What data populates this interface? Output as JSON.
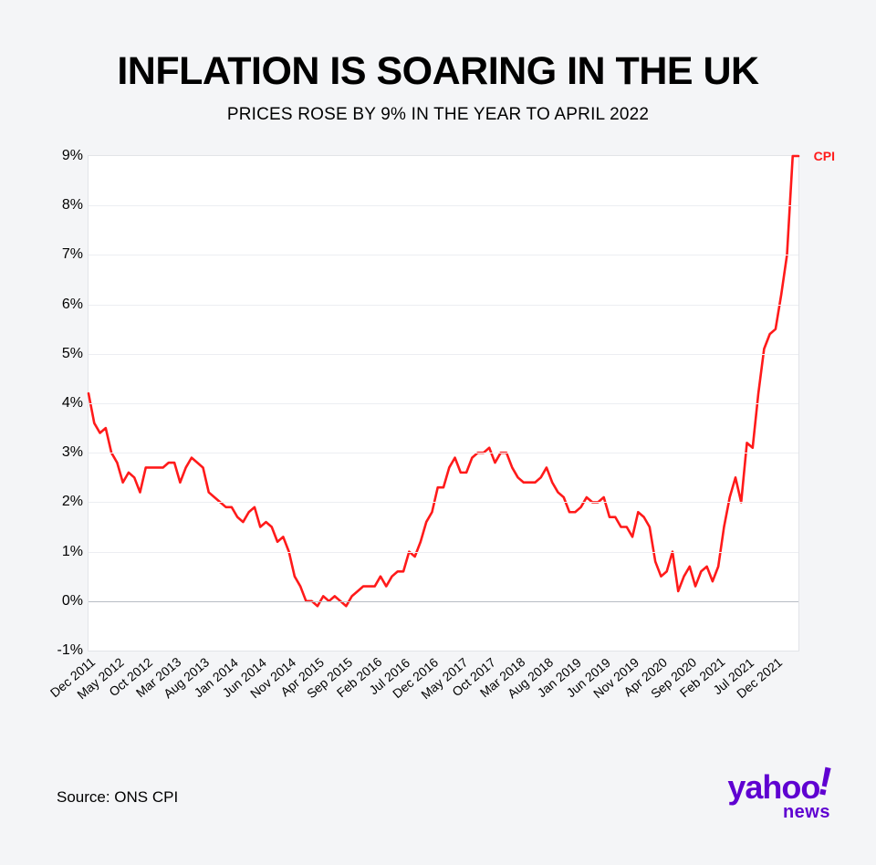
{
  "title": "INFLATION IS SOARING IN THE UK",
  "subtitle": "PRICES ROSE BY 9% IN THE YEAR TO APRIL 2022",
  "source": "Source: ONS CPI",
  "logo": {
    "brand": "yahoo",
    "bang": "!",
    "sub": "news",
    "color": "#5f01d1"
  },
  "chart": {
    "type": "line",
    "background_color": "#ffffff",
    "page_background": "#f4f5f7",
    "grid_color": "#eceef2",
    "border_color": "#e2e4e8",
    "ylim": [
      -1,
      9
    ],
    "ytick_step": 1,
    "y_tick_labels": [
      "-1%",
      "0%",
      "1%",
      "2%",
      "3%",
      "4%",
      "5%",
      "6%",
      "7%",
      "8%",
      "9%"
    ],
    "y_label_fontsize": 16,
    "x_label_fontsize": 14,
    "x_label_rotation_deg": -40,
    "x_labels": [
      {
        "label": "Dec 2011",
        "index": 0
      },
      {
        "label": "May 2012",
        "index": 5
      },
      {
        "label": "Oct 2012",
        "index": 10
      },
      {
        "label": "Mar 2013",
        "index": 15
      },
      {
        "label": "Aug 2013",
        "index": 20
      },
      {
        "label": "Jan 2014",
        "index": 25
      },
      {
        "label": "Jun 2014",
        "index": 30
      },
      {
        "label": "Nov 2014",
        "index": 35
      },
      {
        "label": "Apr 2015",
        "index": 40
      },
      {
        "label": "Sep 2015",
        "index": 45
      },
      {
        "label": "Feb 2016",
        "index": 50
      },
      {
        "label": "Jul 2016",
        "index": 55
      },
      {
        "label": "Dec 2016",
        "index": 60
      },
      {
        "label": "May 2017",
        "index": 65
      },
      {
        "label": "Oct 2017",
        "index": 70
      },
      {
        "label": "Mar 2018",
        "index": 75
      },
      {
        "label": "Aug 2018",
        "index": 80
      },
      {
        "label": "Jan 2019",
        "index": 85
      },
      {
        "label": "Jun 2019",
        "index": 90
      },
      {
        "label": "Nov 2019",
        "index": 95
      },
      {
        "label": "Apr 2020",
        "index": 100
      },
      {
        "label": "Sep 2020",
        "index": 105
      },
      {
        "label": "Feb 2021",
        "index": 110
      },
      {
        "label": "Jul 2021",
        "index": 115
      },
      {
        "label": "Dec 2021",
        "index": 120
      }
    ],
    "series": {
      "name": "CPI",
      "label": "CPI",
      "color": "#ff1a1a",
      "line_width": 2.6,
      "n_points": 125,
      "values": [
        4.2,
        3.6,
        3.4,
        3.5,
        3.0,
        2.8,
        2.4,
        2.6,
        2.5,
        2.2,
        2.7,
        2.7,
        2.7,
        2.7,
        2.8,
        2.8,
        2.4,
        2.7,
        2.9,
        2.8,
        2.7,
        2.2,
        2.1,
        2.0,
        1.9,
        1.9,
        1.7,
        1.6,
        1.8,
        1.9,
        1.5,
        1.6,
        1.5,
        1.2,
        1.3,
        1.0,
        0.5,
        0.3,
        0.0,
        0.0,
        -0.1,
        0.1,
        0.0,
        0.1,
        0.0,
        -0.1,
        0.1,
        0.2,
        0.3,
        0.3,
        0.3,
        0.5,
        0.3,
        0.5,
        0.6,
        0.6,
        1.0,
        0.9,
        1.2,
        1.6,
        1.8,
        2.3,
        2.3,
        2.7,
        2.9,
        2.6,
        2.6,
        2.9,
        3.0,
        3.0,
        3.1,
        2.8,
        3.0,
        3.0,
        2.7,
        2.5,
        2.4,
        2.4,
        2.4,
        2.5,
        2.7,
        2.4,
        2.2,
        2.1,
        1.8,
        1.8,
        1.9,
        2.1,
        2.0,
        2.0,
        2.1,
        1.7,
        1.7,
        1.5,
        1.5,
        1.3,
        1.8,
        1.7,
        1.5,
        0.8,
        0.5,
        0.6,
        1.0,
        0.2,
        0.5,
        0.7,
        0.3,
        0.6,
        0.7,
        0.4,
        0.7,
        1.5,
        2.1,
        2.5,
        2.0,
        3.2,
        3.1,
        4.2,
        5.1,
        5.4,
        5.5,
        6.2,
        7.0,
        9.0,
        9.0
      ]
    }
  }
}
